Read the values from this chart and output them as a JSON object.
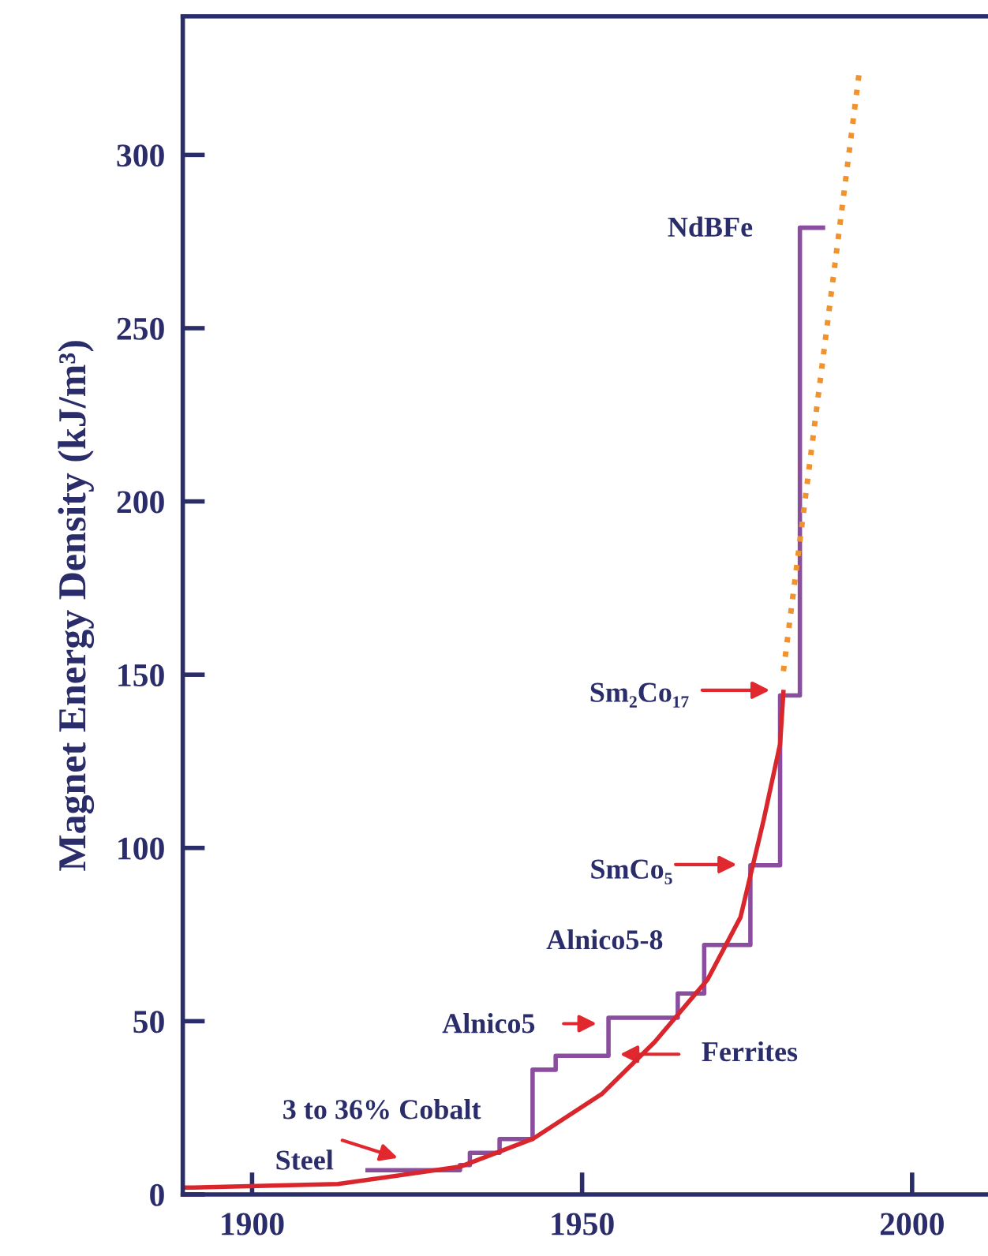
{
  "chart_data": {
    "type": "line",
    "ylabel": "Magnet Energy Density (kJ/m³)",
    "xlim": [
      1889.5,
      2011.5
    ],
    "ylim": [
      0,
      340
    ],
    "xticks": [
      1900,
      1950,
      2000
    ],
    "yticks": [
      0,
      50,
      100,
      150,
      200,
      250,
      300
    ],
    "grid": false,
    "series": [
      {
        "type": "step",
        "color": "#8b4e9e",
        "x": [
          1917.5,
          1931.5,
          1933,
          1937.5,
          1942.5,
          1946,
          1954,
          1964.5,
          1968.5,
          1975.5,
          1980,
          1983,
          1986.5
        ],
        "values": [
          7,
          8.5,
          12,
          16,
          36,
          40,
          51,
          58,
          72,
          95,
          144,
          279,
          279
        ]
      },
      {
        "color": "#d9262c",
        "x": [
          1889.5,
          1891,
          1913,
          1931.5,
          1942.5,
          1953,
          1961,
          1969,
          1974,
          1977.5,
          1980,
          1980.5
        ],
        "values": [
          2,
          2,
          3,
          8,
          16,
          29,
          44,
          62,
          80,
          108,
          130,
          145
        ]
      },
      {
        "color": "#f0922e",
        "line_style": "dotted",
        "x": [
          1980.5,
          1992
        ],
        "values": [
          151,
          324
        ]
      }
    ],
    "annotations": [
      "NdBFe",
      "Sm₂Co₁₇",
      "SmCo₅",
      "Alnico5-8",
      "Alnico5",
      "Ferrites",
      "3 to 36% Cobalt",
      "Steel"
    ]
  }
}
